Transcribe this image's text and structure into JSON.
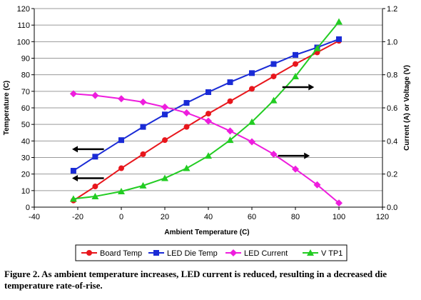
{
  "chart_data": {
    "type": "line",
    "xlabel": "Ambient Temperature (C)",
    "ylabel_left": "Temperature (C)",
    "ylabel_right": "Current (A) or Voltage (V)",
    "xlim": [
      -40,
      120
    ],
    "ylim_left": [
      0,
      120
    ],
    "ylim_right": [
      0.0,
      1.2
    ],
    "x_ticks": [
      "-40",
      "-20",
      "0",
      "20",
      "40",
      "60",
      "80",
      "100",
      "120"
    ],
    "y_left_ticks": [
      "0",
      "10",
      "20",
      "30",
      "40",
      "50",
      "60",
      "70",
      "80",
      "90",
      "100",
      "110",
      "120"
    ],
    "y_right_ticks": [
      "0.0",
      "0.2",
      "0.4",
      "0.6",
      "0.8",
      "1.0",
      "1.2"
    ],
    "grid": "horizontal",
    "legend_position": "bottom",
    "series": [
      {
        "name": "Board Temp",
        "axis": "left",
        "color": "#e8161c",
        "marker": "circle",
        "x": [
          -22,
          -12,
          0,
          10,
          20,
          30,
          40,
          50,
          60,
          70,
          80,
          90,
          100
        ],
        "values": [
          4,
          12.5,
          23.5,
          32,
          40.5,
          48.5,
          56.5,
          64,
          71.5,
          79,
          86.5,
          93.5,
          100.5
        ]
      },
      {
        "name": "LED Die Temp",
        "axis": "left",
        "color": "#1a2bd6",
        "marker": "square",
        "x": [
          -22,
          -12,
          0,
          10,
          20,
          30,
          40,
          50,
          60,
          70,
          80,
          90,
          100
        ],
        "values": [
          22,
          30.5,
          40.5,
          48.5,
          56,
          63,
          69.5,
          75.5,
          81,
          86.5,
          92,
          96.5,
          101.5
        ]
      },
      {
        "name": "LED Current",
        "axis": "right",
        "color": "#ee1ddd",
        "marker": "diamond",
        "x": [
          -22,
          -12,
          0,
          10,
          20,
          30,
          40,
          50,
          60,
          70,
          80,
          90,
          100
        ],
        "values": [
          0.685,
          0.675,
          0.655,
          0.635,
          0.605,
          0.57,
          0.52,
          0.46,
          0.395,
          0.32,
          0.23,
          0.135,
          0.025
        ]
      },
      {
        "name": "V TP1",
        "axis": "right",
        "color": "#22cc22",
        "marker": "triangle",
        "x": [
          -22,
          -12,
          0,
          10,
          20,
          30,
          40,
          50,
          60,
          70,
          80,
          90,
          100
        ],
        "values": [
          0.05,
          0.065,
          0.095,
          0.13,
          0.175,
          0.235,
          0.31,
          0.405,
          0.515,
          0.645,
          0.79,
          0.96,
          1.12
        ]
      }
    ],
    "annotations": [
      {
        "name": "arrow-left-1",
        "direction": "left",
        "axis": "left",
        "x_from": -8,
        "x_to": -20,
        "y": 35
      },
      {
        "name": "arrow-left-2",
        "direction": "left",
        "axis": "left",
        "x_from": -8,
        "x_to": -20,
        "y": 17.5
      },
      {
        "name": "arrow-right-1",
        "direction": "right",
        "axis": "left",
        "x_from": 74,
        "x_to": 86,
        "y": 72.5
      },
      {
        "name": "arrow-right-2",
        "direction": "right",
        "axis": "left",
        "x_from": 72,
        "x_to": 84,
        "y": 31
      }
    ]
  },
  "caption": {
    "text": "Figure 2. As ambient temperature increases, LED current is reduced, resulting in a decreased die temperature rate-of-rise."
  }
}
